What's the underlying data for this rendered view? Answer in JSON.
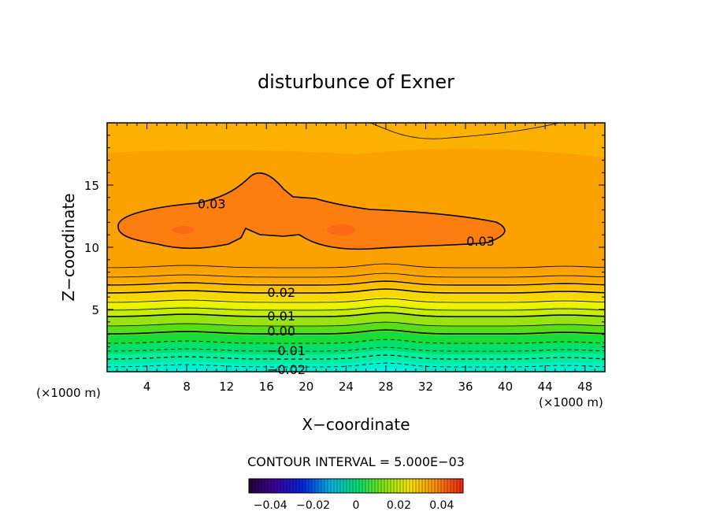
{
  "chart_data": {
    "type": "heatmap",
    "title": "disturbunce of Exner",
    "xlabel": "X−coordinate",
    "ylabel": "Z−coordinate",
    "x_unit_label": "(×1000 m)",
    "z_unit_label": "(×1000 m)",
    "xlim": [
      0,
      50
    ],
    "ylim": [
      0,
      20
    ],
    "x_ticks": [
      4,
      8,
      12,
      16,
      20,
      24,
      28,
      32,
      36,
      40,
      44,
      48
    ],
    "y_ticks": [
      5,
      10,
      15
    ],
    "contour_interval_label": "CONTOUR INTERVAL = 5.000E−03",
    "contour_labels": [
      {
        "text": "0.03",
        "x": 10.5,
        "z": 13.5
      },
      {
        "text": "0.03",
        "x": 37.5,
        "z": 10.5
      },
      {
        "text": "0.02",
        "x": 17.5,
        "z": 6.4
      },
      {
        "text": "0.01",
        "x": 17.5,
        "z": 4.5
      },
      {
        "text": "0.00",
        "x": 17.5,
        "z": 3.3
      },
      {
        "text": "−0.01",
        "x": 18.0,
        "z": 1.7
      },
      {
        "text": "−0.02",
        "x": 18.0,
        "z": 0.2
      }
    ],
    "colorbar": {
      "range": [
        -0.05,
        0.05
      ],
      "tick_labels": [
        "−0.04",
        "−0.02",
        "0",
        "0.02",
        "0.04"
      ],
      "tick_values": [
        -0.04,
        -0.02,
        0,
        0.02,
        0.04
      ]
    }
  }
}
